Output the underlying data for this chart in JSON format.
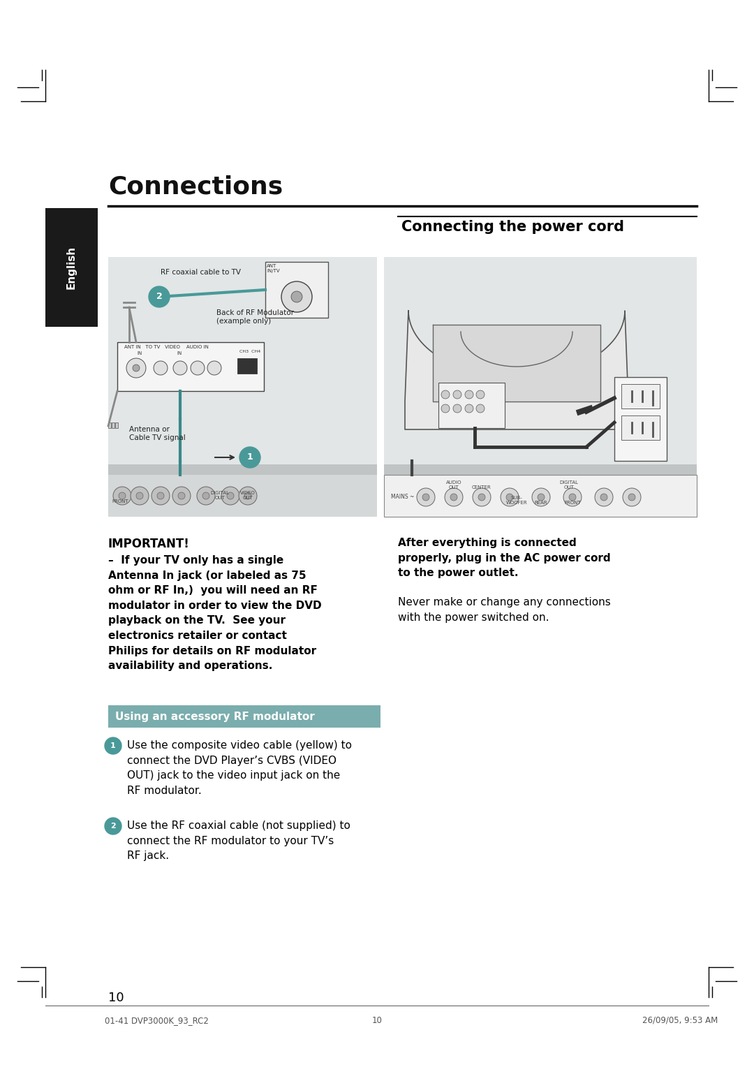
{
  "page_bg": "#ffffff",
  "title": "Connections",
  "section_title": "Connecting the power cord",
  "english_tab_text": "English",
  "english_tab_bg": "#1a1a1a",
  "english_tab_color": "#ffffff",
  "diagram_bg": "#e2e6e6",
  "important_bold_line": "IMPORTANT!",
  "important_body": "–  If your TV only has a single\nAntenna In jack (or labeled as 75\nohm or RF In,)  you will need an RF\nmodulator in order to view the DVD\nplayback on the TV.  See your\nelectronics retailer or contact\nPhilips for details on RF modulator\navailability and operations.",
  "right_bold": "After everything is connected\nproperly, plug in the AC power cord\nto the power outlet.",
  "right_normal": "Never make or change any connections\nwith the power switched on.",
  "rf_banner_bg": "#7aadad",
  "rf_banner_text": "Using an accessory RF modulator",
  "rf_banner_text_color": "#ffffff",
  "step1_text": "Use the composite video cable (yellow) to\nconnect the DVD Player’s CVBS (VIDEO\nOUT) jack to the video input jack on the\nRF modulator.",
  "step2_text": "Use the RF coaxial cable (not supplied) to\nconnect the RF modulator to your TV’s\nRF jack.",
  "step_circle_color": "#4a9999",
  "page_number": "10",
  "footer_left": "01-41 DVP3000K_93_RC2",
  "footer_center": "10",
  "footer_right": "26/09/05, 9:53 AM"
}
